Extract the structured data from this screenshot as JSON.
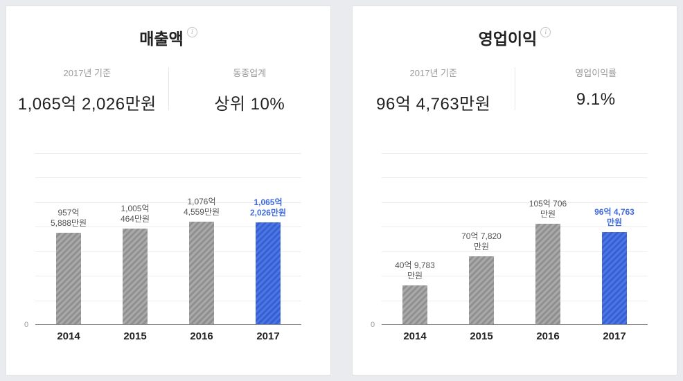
{
  "colors": {
    "accent_blue": "#3e6bde",
    "bar_gray": "#9a9a9a",
    "card_background": "#ffffff",
    "page_background": "#e9ebee"
  },
  "axis_zero_label": "0",
  "panels": [
    {
      "title": "매출액",
      "info_icon": "i",
      "stats": [
        {
          "label": "2017년 기준",
          "value": "1,065억 2,026만원"
        },
        {
          "label": "동종업계",
          "value": "상위 10%"
        }
      ]
    },
    {
      "title": "영업이익",
      "info_icon": "i",
      "stats": [
        {
          "label": "2017년 기준",
          "value": "96억 4,763만원"
        },
        {
          "label": "영업이익률",
          "value": "9.1%"
        }
      ]
    }
  ],
  "chart_data": [
    {
      "type": "bar",
      "title": "매출액 연도별 추이",
      "categories": [
        "2014",
        "2015",
        "2016",
        "2017"
      ],
      "values": [
        957.5888,
        1005.0464,
        1076.4559,
        1065.2026
      ],
      "unit": "억원",
      "ylim": [
        0,
        1800
      ],
      "grid": true,
      "highlight_index": 3,
      "bar_labels": [
        [
          "957억",
          "5,888만원"
        ],
        [
          "1,005억",
          "464만원"
        ],
        [
          "1,076억",
          "4,559만원"
        ],
        [
          "1,065억",
          "2,026만원"
        ]
      ]
    },
    {
      "type": "bar",
      "title": "영업이익 연도별 추이",
      "categories": [
        "2014",
        "2015",
        "2016",
        "2017"
      ],
      "values": [
        40.9783,
        70.782,
        105.0706,
        96.4763
      ],
      "unit": "억원",
      "ylim": [
        0,
        180
      ],
      "grid": true,
      "highlight_index": 3,
      "bar_labels": [
        [
          "40억 9,783",
          "만원"
        ],
        [
          "70억 7,820",
          "만원"
        ],
        [
          "105억 706",
          "만원"
        ],
        [
          "96억 4,763",
          "만원"
        ]
      ]
    }
  ]
}
